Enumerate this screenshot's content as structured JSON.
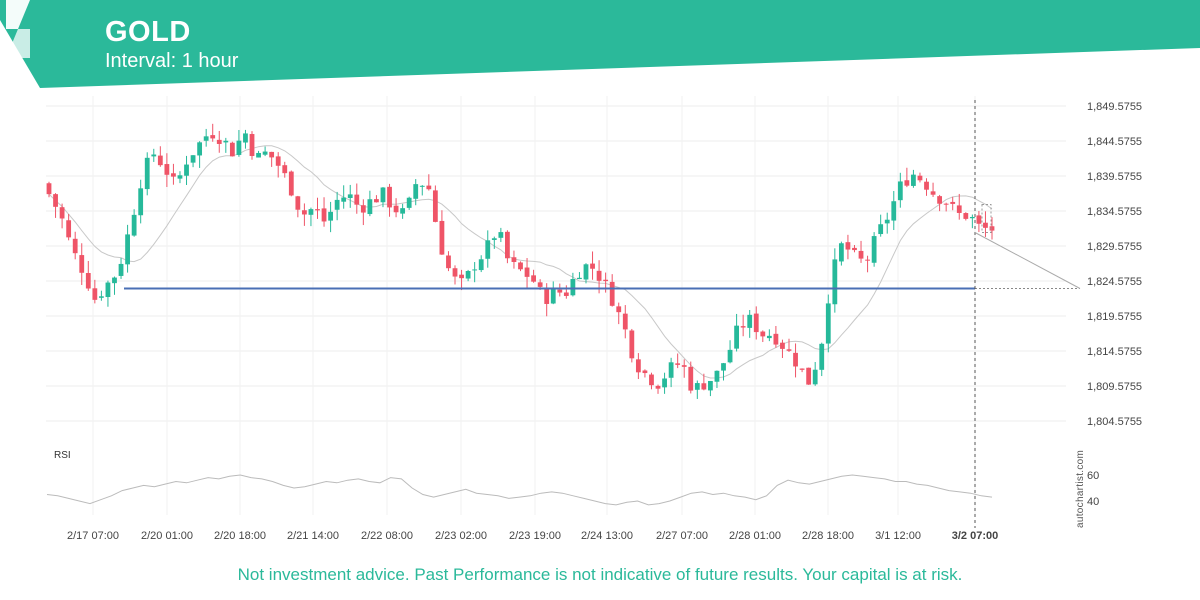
{
  "header": {
    "title": "GOLD",
    "interval": "Interval: 1 hour",
    "brand_color": "#2bb99a"
  },
  "chart_data": {
    "type": "candlestick",
    "symbol": "GOLD",
    "interval": "1 hour",
    "ylim": [
      1803.0,
      1851.0
    ],
    "y_ticks": [
      "1,849.5755",
      "1,844.5755",
      "1,839.5755",
      "1,834.5755",
      "1,829.5755",
      "1,824.5755",
      "1,819.5755",
      "1,814.5755",
      "1,809.5755",
      "1,804.5755"
    ],
    "x_ticks": [
      "2/17 07:00",
      "2/20 01:00",
      "2/20 18:00",
      "2/21 14:00",
      "2/22 08:00",
      "2/23 02:00",
      "2/23 19:00",
      "2/24 13:00",
      "2/27 07:00",
      "2/28 01:00",
      "2/28 18:00",
      "3/1 12:00",
      "3/2 07:00"
    ],
    "support_level": 1823.5,
    "forecast_line": {
      "from": 1831.5,
      "to": 1823.5
    },
    "up_color": "#26b99a",
    "down_color": "#ef5467",
    "close_path": [
      1837,
      1834,
      1829,
      1826,
      1822,
      1824,
      1826,
      1832,
      1839,
      1843,
      1841,
      1838,
      1842,
      1844,
      1846,
      1845,
      1843,
      1846,
      1842,
      1843,
      1841,
      1838,
      1834,
      1835,
      1833,
      1836,
      1837,
      1835,
      1836,
      1837,
      1835,
      1834,
      1839,
      1838,
      1830,
      1825,
      1824,
      1827,
      1829,
      1832,
      1827,
      1826,
      1825,
      1822,
      1823,
      1823,
      1826,
      1827,
      1825,
      1822,
      1818,
      1813,
      1811,
      1810,
      1812,
      1813,
      1809,
      1810,
      1811,
      1814,
      1818,
      1819,
      1817,
      1817,
      1815,
      1813,
      1810,
      1814,
      1825,
      1830,
      1828,
      1827,
      1831,
      1834,
      1838,
      1840,
      1839,
      1837,
      1836,
      1834,
      1834,
      1832,
      1832
    ],
    "rsi": {
      "label": "RSI",
      "ticks": [
        60,
        40
      ],
      "ylim": [
        30,
        70
      ],
      "values": [
        45,
        44,
        42,
        40,
        38,
        41,
        44,
        48,
        50,
        52,
        51,
        53,
        55,
        54,
        56,
        58,
        57,
        59,
        60,
        58,
        57,
        55,
        52,
        50,
        51,
        53,
        55,
        54,
        56,
        57,
        55,
        54,
        58,
        57,
        50,
        45,
        43,
        45,
        47,
        49,
        46,
        45,
        44,
        42,
        43,
        44,
        46,
        47,
        46,
        44,
        42,
        40,
        38,
        37,
        39,
        40,
        37,
        38,
        40,
        43,
        46,
        47,
        45,
        46,
        44,
        43,
        41,
        44,
        52,
        56,
        54,
        53,
        55,
        57,
        59,
        60,
        59,
        58,
        57,
        55,
        55,
        53,
        52,
        50,
        48,
        47,
        46,
        44,
        43
      ]
    },
    "annotation": "3/2 07:00"
  },
  "footer": {
    "disclaimer": "Not investment advice. Past Performance is not indicative of future results. Your capital is at risk.",
    "watermark": "autochartist.com"
  }
}
